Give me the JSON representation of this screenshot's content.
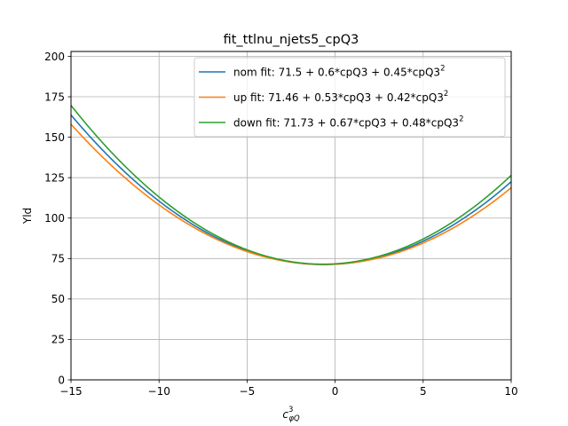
{
  "chart_data": {
    "type": "line",
    "title": "fit_ttlnu_njets5_cpQ3",
    "xlabel_base": "c",
    "xlabel_sup": "3",
    "xlabel_sub": "φQ",
    "ylabel": "Yld",
    "xlim": [
      -15,
      10
    ],
    "ylim": [
      0,
      203
    ],
    "xticks": [
      -15,
      -10,
      -5,
      0,
      5,
      10
    ],
    "yticks": [
      0,
      25,
      50,
      75,
      100,
      125,
      150,
      175,
      200
    ],
    "xtick_labels": [
      "−15",
      "−10",
      "−5",
      "0",
      "5",
      "10"
    ],
    "ytick_labels": [
      "0",
      "25",
      "50",
      "75",
      "100",
      "125",
      "150",
      "175",
      "200"
    ],
    "grid": true,
    "legend_position": "top-right",
    "series": [
      {
        "name": "nom fit: 71.5 + 0.6*cpQ3 + 0.45*cpQ3",
        "sup": "2",
        "color": "#1f77b4",
        "coef": [
          71.5,
          0.6,
          0.45
        ]
      },
      {
        "name": "up fit: 71.46 + 0.53*cpQ3 + 0.42*cpQ3",
        "sup": "2",
        "color": "#ff7f0e",
        "coef": [
          71.46,
          0.53,
          0.42
        ]
      },
      {
        "name": "down fit: 71.73 + 0.67*cpQ3 + 0.48*cpQ3",
        "sup": "2",
        "color": "#2ca02c",
        "coef": [
          71.73,
          0.67,
          0.48
        ]
      }
    ]
  }
}
